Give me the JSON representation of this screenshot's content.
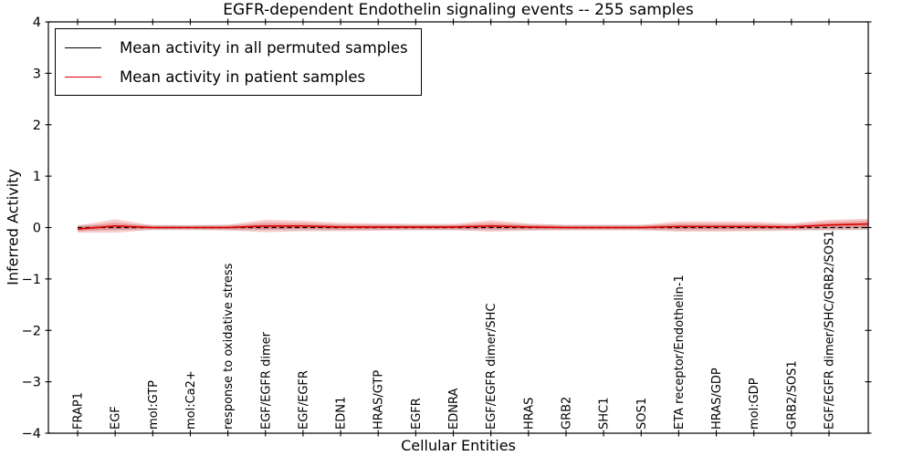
{
  "chart_data": {
    "type": "line",
    "title": "EGFR-dependent Endothelin signaling events -- 255 samples",
    "xlabel": "Cellular Entities",
    "ylabel": "Inferred Activity",
    "ylim": [
      -4,
      4
    ],
    "yticks": [
      4,
      3,
      2,
      1,
      0,
      -1,
      -2,
      -3,
      -4
    ],
    "ytick_labels": [
      "4",
      "3",
      "2",
      "1",
      "0",
      "−1",
      "−2",
      "−3",
      "−4"
    ],
    "grid": false,
    "legend_position": "upper-left",
    "categories": [
      "FRAP1",
      "EGF",
      "mol:GTP",
      "mol:Ca2+",
      "response to oxidative stress",
      "EGF/EGFR dimer",
      "EGF/EGFR",
      "EDN1",
      "HRAS/GTP",
      "EGFR",
      "EDNRA",
      "EGF/EGFR dimer/SHC",
      "HRAS",
      "GRB2",
      "SHC1",
      "SOS1",
      "ETA receptor/Endothelin-1",
      "HRAS/GDP",
      "mol:GDP",
      "GRB2/SOS1",
      "EGF/EGFR dimer/SHC/GRB2/SOS1"
    ],
    "series": [
      {
        "name": "Mean activity in all permuted samples",
        "color": "#000000",
        "linestyle": "dashed",
        "values": [
          0,
          0,
          0,
          0,
          0,
          0,
          0,
          0,
          0,
          0,
          0,
          0,
          0,
          0,
          0,
          0,
          0,
          0,
          0,
          0,
          0
        ]
      },
      {
        "name": "Mean activity in patient samples",
        "color": "#dd0000",
        "linestyle": "solid",
        "values": [
          -0.03,
          0.03,
          0,
          0,
          0,
          0.03,
          0.03,
          0.01,
          0.01,
          0.01,
          0.01,
          0.03,
          0.01,
          0,
          0,
          0,
          0.02,
          0.02,
          0.02,
          0.01,
          0.05
        ]
      }
    ],
    "bands": [
      {
        "name": "permuted-samples-spread",
        "series": 0,
        "color": "#999999",
        "opacity": 0.35,
        "half_widths": [
          0.05,
          0.05,
          0.05,
          0.05,
          0.05,
          0.05,
          0.05,
          0.05,
          0.05,
          0.05,
          0.05,
          0.05,
          0.05,
          0.05,
          0.05,
          0.05,
          0.05,
          0.05,
          0.05,
          0.05,
          0.05
        ]
      },
      {
        "name": "patient-samples-spread-outer",
        "series": 1,
        "color": "#e25b5b",
        "opacity": 0.3,
        "half_widths": [
          0.07,
          0.13,
          0.045,
          0.04,
          0.055,
          0.12,
          0.1,
          0.08,
          0.07,
          0.06,
          0.06,
          0.11,
          0.07,
          0.05,
          0.05,
          0.05,
          0.1,
          0.1,
          0.09,
          0.07,
          0.1
        ]
      },
      {
        "name": "patient-samples-spread-inner",
        "series": 1,
        "color": "#e25b5b",
        "opacity": 0.38,
        "half_widths": [
          0.04,
          0.07,
          0.025,
          0.022,
          0.03,
          0.065,
          0.055,
          0.045,
          0.04,
          0.034,
          0.034,
          0.06,
          0.04,
          0.028,
          0.028,
          0.028,
          0.055,
          0.055,
          0.05,
          0.04,
          0.06
        ]
      }
    ],
    "right_edge_extension": {
      "permuted_mean": 0,
      "permuted_half": 0.05,
      "patient_mean": 0.07,
      "patient_outer_half": 0.1,
      "patient_inner_half": 0.06
    }
  }
}
